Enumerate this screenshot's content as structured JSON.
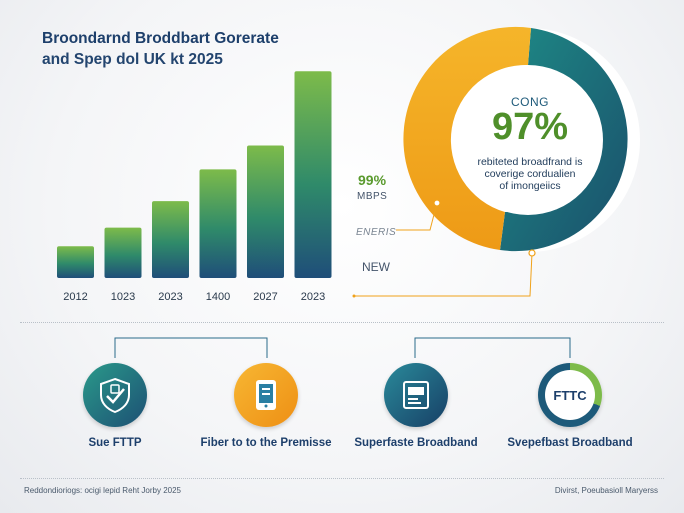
{
  "header": {
    "title_line1": "Broondarnd Broddbart Gorerate",
    "title_line2": "and Spep dol UK kt 2025"
  },
  "chart_data": {
    "type": "bar",
    "categories": [
      "2012",
      "1023",
      "2023",
      "1400",
      "2027",
      "2023"
    ],
    "values": [
      12,
      19,
      29,
      41,
      50,
      78
    ],
    "ylim": [
      0,
      80
    ],
    "colors": {
      "top": "#7dbb4a",
      "bottom": "#1f4e79"
    }
  },
  "side_labels": {
    "pct": "99%",
    "mbps": "MBPS",
    "energy": "ENERIS",
    "new": "NEW"
  },
  "donut": {
    "head": "CONG",
    "value": "97%",
    "desc_line1": "rebiteted broadfrand is",
    "desc_line2": "coverige cordualien",
    "desc_line3": "of imongeiics",
    "colors": {
      "orange": "#f2a51a",
      "teal": "#1e6f84",
      "dark": "#1a4f6b"
    }
  },
  "features": [
    {
      "label": "Sue FTTP",
      "icon": "shield-check-icon"
    },
    {
      "label": "Fiber to to the Premisse",
      "icon": "tablet-icon"
    },
    {
      "label": "Superfaste Broadband",
      "icon": "monitor-icon"
    },
    {
      "label": "Svepefbast Broadband",
      "icon": "fttc-icon",
      "icon_text": "FTTC"
    }
  ],
  "footer": {
    "left": "Reddondioriogs: ocigi lepid Reht Jorby 2025",
    "right": "Divirst, Poeubasioll Maryerss"
  }
}
